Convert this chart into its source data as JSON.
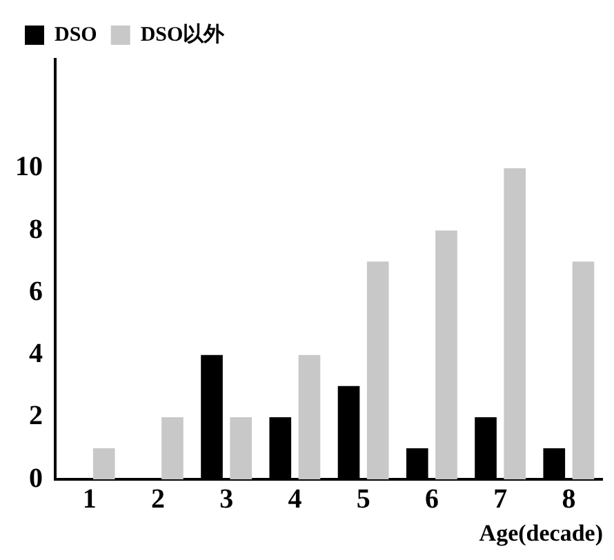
{
  "chart_data": {
    "type": "bar",
    "xlabel": "Age(decade)",
    "categories": [
      "1",
      "2",
      "3",
      "4",
      "5",
      "6",
      "7",
      "8"
    ],
    "series": [
      {
        "name": "DSO",
        "color": "#000000",
        "values": [
          0,
          0,
          4,
          2,
          3,
          1,
          2,
          1
        ]
      },
      {
        "name": "DSO以外",
        "color": "#c8c8c8",
        "values": [
          1,
          2,
          2,
          4,
          7,
          8,
          10,
          7
        ]
      }
    ],
    "ylim": [
      0,
      13.5
    ],
    "yticks": [
      0,
      2,
      4,
      6,
      8,
      10
    ],
    "grid": false,
    "legend": "top left"
  }
}
